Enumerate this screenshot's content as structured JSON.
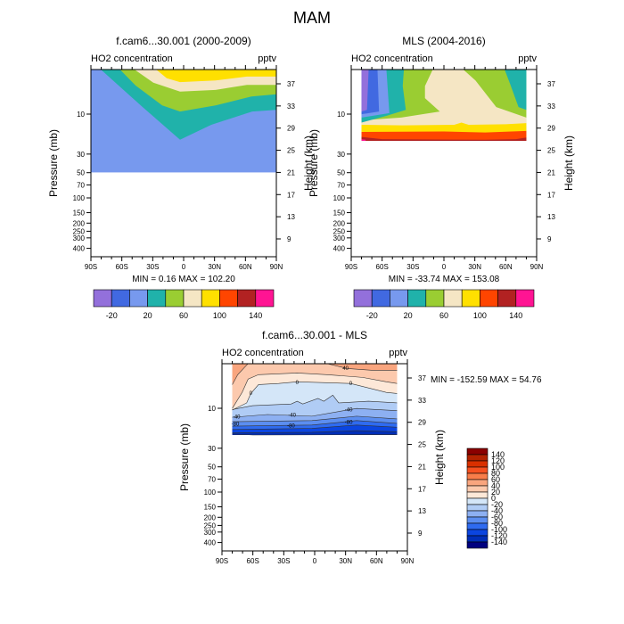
{
  "figure": {
    "title": "MAM"
  },
  "chart_data": [
    {
      "type": "contour",
      "title": "f.cam6...30.001 (2000-2009)",
      "left_label": "HO2 concentration",
      "right_label": "pptv",
      "stats": "MIN =   0.16  MAX = 102.20",
      "ylabel": "Pressure (mb)",
      "ylabel_right": "Height (km)",
      "x_ticks": [
        -90,
        -60,
        -30,
        0,
        30,
        60,
        90
      ],
      "x_tick_labels": [
        "90S",
        "60S",
        "30S",
        "0",
        "30N",
        "60N",
        "90N"
      ],
      "pressure_ticks": [
        10,
        30,
        50,
        70,
        100,
        150,
        200,
        250,
        300,
        400
      ],
      "pressure_tick_labels": [
        "10",
        "30",
        "50",
        "70",
        "100",
        "150",
        "200",
        "250",
        "300",
        "400"
      ],
      "height_ticks": [
        9,
        13,
        17,
        21,
        25,
        29,
        33,
        37
      ],
      "height_tick_labels": [
        "9",
        "13",
        "17",
        "21",
        "25",
        "29",
        "33",
        "37"
      ],
      "data_extent": {
        "lat": [
          -90,
          90
        ],
        "km": [
          21,
          40
        ]
      },
      "base_color": "#7799EE",
      "regions": [
        {
          "level": "20-40",
          "color": "#20B2AA",
          "lower_boundary": [
            [
              -90,
              40
            ],
            [
              -80.5,
              39.6
            ],
            [
              -39.8,
              32.8
            ],
            [
              -3.5,
              26.9
            ],
            [
              26.8,
              29.6
            ],
            [
              66.6,
              32.0
            ],
            [
              90,
              32.3
            ]
          ]
        },
        {
          "level": "40-60",
          "color": "#9ACD32",
          "lower_boundary": [
            [
              -64,
              40
            ],
            [
              -46.7,
              36.7
            ],
            [
              -20.8,
              33.1
            ],
            [
              -3.5,
              32.0
            ],
            [
              31,
              33.1
            ],
            [
              65.8,
              34.7
            ],
            [
              90,
              35.1
            ]
          ]
        },
        {
          "level": "60-80",
          "color": "#F5E6C4",
          "lower_boundary": [
            [
              -51,
              40
            ],
            [
              -29.4,
              37.2
            ],
            [
              -3.5,
              35.6
            ],
            [
              31,
              35.9
            ],
            [
              61.4,
              36.8
            ],
            [
              90,
              36.8
            ]
          ]
        },
        {
          "level": "80-100",
          "color": "#FFE000",
          "lower_boundary": [
            [
              -29.4,
              40
            ],
            [
              -16.4,
              38.0
            ],
            [
              -3.5,
              37.3
            ],
            [
              31,
              37.6
            ],
            [
              61.4,
              38.3
            ],
            [
              90,
              38.3
            ]
          ]
        }
      ],
      "colorbar": {
        "colors": [
          "#9370DB",
          "#4169E1",
          "#7799EE",
          "#20B2AA",
          "#9ACD32",
          "#F5E6C4",
          "#FFE000",
          "#FF4500",
          "#B22222",
          "#FF1493"
        ],
        "labels": [
          "-20",
          "20",
          "60",
          "100",
          "140"
        ]
      }
    },
    {
      "type": "contour",
      "title": "MLS (2004-2016)",
      "left_label": "HO2 concentration",
      "right_label": "pptv",
      "stats": "MIN = -33.74  MAX = 153.08",
      "ylabel": "Pressure (mb)",
      "ylabel_right": "Height (km)",
      "x_ticks": [
        -90,
        -60,
        -30,
        0,
        30,
        60,
        90
      ],
      "x_tick_labels": [
        "90S",
        "60S",
        "30S",
        "0",
        "30N",
        "60N",
        "90N"
      ],
      "pressure_ticks": [
        10,
        30,
        50,
        70,
        100,
        150,
        200,
        250,
        300,
        400
      ],
      "pressure_tick_labels": [
        "10",
        "30",
        "50",
        "70",
        "100",
        "150",
        "200",
        "250",
        "300",
        "400"
      ],
      "height_ticks": [
        9,
        13,
        17,
        21,
        25,
        29,
        33,
        37
      ],
      "height_tick_labels": [
        "9",
        "13",
        "17",
        "21",
        "25",
        "29",
        "33",
        "37"
      ],
      "data_extent": {
        "lat": [
          -80,
          80
        ],
        "km": [
          26.7,
          40
        ]
      },
      "base_color": "#9ACD32",
      "polygons": [
        {
          "level": "60-80",
          "color": "#F5E6C4",
          "points": [
            [
              -9.8,
              40
            ],
            [
              16.2,
              40
            ],
            [
              30.6,
              37.6
            ],
            [
              50.8,
              32.8
            ],
            [
              80,
              30.9
            ],
            [
              80,
              29.4
            ],
            [
              -80,
              29.4
            ],
            [
              -80,
              30.4
            ],
            [
              -41.5,
              30.9
            ],
            [
              -4,
              32.0
            ],
            [
              -18.4,
              34.4
            ],
            [
              -18.4,
              36.6
            ]
          ]
        },
        {
          "level": "20-40",
          "color": "#20B2AA",
          "points": [
            [
              -80,
              40
            ],
            [
              -38.7,
              40
            ],
            [
              -40,
              36.6
            ],
            [
              -37,
              32.3
            ],
            [
              -56,
              31.2
            ],
            [
              -80,
              30.0
            ]
          ]
        },
        {
          "level": "20-40",
          "color": "#20B2AA",
          "points": [
            [
              58,
              40
            ],
            [
              80,
              40
            ],
            [
              80,
              32.3
            ],
            [
              72.4,
              32.8
            ],
            [
              63.8,
              37.2
            ]
          ]
        },
        {
          "level": "0-20",
          "color": "#7799EE",
          "points": [
            [
              -80,
              40
            ],
            [
              -56,
              40
            ],
            [
              -53,
              31.7
            ],
            [
              -80,
              30.9
            ]
          ]
        },
        {
          "level": "-20-0",
          "color": "#4169E1",
          "points": [
            [
              -80,
              40
            ],
            [
              -64.6,
              40
            ],
            [
              -63,
              32.0
            ],
            [
              -80,
              31.5
            ]
          ]
        },
        {
          "level": "-40--20",
          "color": "#9370DB",
          "points": [
            [
              -80,
              40
            ],
            [
              -73,
              40
            ],
            [
              -74.7,
              32.3
            ],
            [
              -80,
              32.0
            ]
          ]
        },
        {
          "level": "80-100",
          "color": "#FFE000",
          "points": [
            [
              -80,
              29.6
            ],
            [
              -40,
              29.5
            ],
            [
              10,
              29.6
            ],
            [
              17,
              30.0
            ],
            [
              24,
              29.6
            ],
            [
              60,
              29.7
            ],
            [
              80,
              29.9
            ],
            [
              80,
              26.7
            ],
            [
              -80,
              26.7
            ]
          ]
        },
        {
          "level": "100-120",
          "color": "#FF4500",
          "points": [
            [
              -80,
              28.3
            ],
            [
              0,
              28.4
            ],
            [
              40,
              28.2
            ],
            [
              80,
              28.5
            ],
            [
              80,
              26.7
            ],
            [
              -80,
              26.7
            ]
          ]
        },
        {
          "level": "120-140",
          "color": "#B22222",
          "points": [
            [
              -80,
              27.4
            ],
            [
              -60,
              27.0
            ],
            [
              40,
              26.9
            ],
            [
              70,
              27.0
            ],
            [
              80,
              27.3
            ],
            [
              80,
              26.7
            ],
            [
              -80,
              26.7
            ]
          ]
        },
        {
          "level": ">140",
          "color": "#FF1493",
          "points": [
            [
              -80,
              27.0
            ],
            [
              -76,
              26.9
            ],
            [
              -76,
              26.7
            ],
            [
              -80,
              26.7
            ]
          ]
        }
      ],
      "colorbar": {
        "colors": [
          "#9370DB",
          "#4169E1",
          "#7799EE",
          "#20B2AA",
          "#9ACD32",
          "#F5E6C4",
          "#FFE000",
          "#FF4500",
          "#B22222",
          "#FF1493"
        ],
        "labels": [
          "-20",
          "20",
          "60",
          "100",
          "140"
        ]
      }
    },
    {
      "type": "contour",
      "title": "f.cam6...30.001 - MLS",
      "left_label": "HO2 concentration",
      "right_label": "pptv",
      "stats": "MIN = -152.59  MAX =  54.76",
      "ylabel": "Pressure (mb)",
      "ylabel_right": "Height (km)",
      "x_ticks": [
        -90,
        -60,
        -30,
        0,
        30,
        60,
        90
      ],
      "x_tick_labels": [
        "90S",
        "60S",
        "30S",
        "0",
        "30N",
        "60N",
        "90N"
      ],
      "pressure_ticks": [
        10,
        30,
        50,
        70,
        100,
        150,
        200,
        250,
        300,
        400
      ],
      "pressure_tick_labels": [
        "10",
        "30",
        "50",
        "70",
        "100",
        "150",
        "200",
        "250",
        "300",
        "400"
      ],
      "height_ticks": [
        9,
        13,
        17,
        21,
        25,
        29,
        33,
        37
      ],
      "height_tick_labels": [
        "9",
        "13",
        "17",
        "21",
        "25",
        "29",
        "33",
        "37"
      ],
      "data_extent": {
        "lat": [
          -80,
          80
        ],
        "km": [
          26.7,
          40
        ]
      },
      "base_color": "#0B2A9E",
      "regions": [
        {
          "level": "-140--120",
          "color": "#002EB8",
          "lower_boundary": [
            [
              -80,
              26.9
            ],
            [
              -60,
              26.7
            ],
            [
              40,
              26.75
            ],
            [
              80,
              26.75
            ]
          ]
        },
        {
          "level": "-120--100",
          "color": "#0B45E0",
          "lower_boundary": [
            [
              -80,
              27.1
            ],
            [
              -2.6,
              27.2
            ],
            [
              40.7,
              27.5
            ],
            [
              80,
              27.3
            ]
          ]
        },
        {
          "level": "-100--80",
          "color": "#2F6BF0",
          "lower_boundary": [
            [
              -80,
              27.7
            ],
            [
              -2.6,
              27.9
            ],
            [
              40.7,
              28.5
            ],
            [
              80,
              28.1
            ]
          ]
        },
        {
          "level": "-80--60",
          "color": "#5C8EF0",
          "lower_boundary": [
            [
              -80,
              28.3
            ],
            [
              -2.6,
              28.5
            ],
            [
              40.7,
              29.3
            ],
            [
              80,
              28.8
            ]
          ]
        },
        {
          "level": "-60--40",
          "color": "#8DB0F2",
          "lower_boundary": [
            [
              -80,
              29.1
            ],
            [
              -2.6,
              29.3
            ],
            [
              40.7,
              30.1
            ],
            [
              80,
              29.6
            ]
          ]
        },
        {
          "level": "-40--20",
          "color": "#B0CCF5",
          "lower_boundary": [
            [
              -80,
              29.9
            ],
            [
              -45.9,
              30.4
            ],
            [
              -2.6,
              30.1
            ],
            [
              40.7,
              31.5
            ],
            [
              80,
              31.1
            ]
          ]
        },
        {
          "level": "-20-0",
          "color": "#D4E6F8",
          "lower_boundary": [
            [
              -80,
              31.3
            ],
            [
              -60.3,
              32.0
            ],
            [
              -22.8,
              32.3
            ],
            [
              -17,
              32.8
            ],
            [
              -11.6,
              32.3
            ],
            [
              3.2,
              33.3
            ],
            [
              8.9,
              32.8
            ],
            [
              17.6,
              33.9
            ],
            [
              23.3,
              32.5
            ],
            [
              52.2,
              32.8
            ],
            [
              80,
              32.5
            ]
          ]
        },
        {
          "level": "0-20",
          "color": "#FDE8D8",
          "lower_boundary": [
            [
              -80,
              31.2
            ],
            [
              -66,
              32.5
            ],
            [
              -62,
              34.2
            ],
            [
              -54.5,
              35.8
            ],
            [
              -35,
              36.0
            ],
            [
              -17,
              36.3
            ],
            [
              34.9,
              36.0
            ],
            [
              69.5,
              34.4
            ],
            [
              80,
              34.2
            ]
          ]
        },
        {
          "level": "20-40",
          "color": "#FCC9AD",
          "lower_boundary": [
            [
              -80,
              31.5
            ],
            [
              -70.4,
              34.4
            ],
            [
              -64.6,
              36.8
            ],
            [
              -54.5,
              37.6
            ],
            [
              -17,
              37.9
            ],
            [
              11.8,
              37.6
            ],
            [
              46.5,
              37.1
            ],
            [
              69.5,
              36.3
            ],
            [
              80,
              36.0
            ]
          ]
        },
        {
          "level": "40-60",
          "color": "#F9A57E",
          "lower_boundary": [
            [
              -80,
              35.8
            ],
            [
              -74.7,
              37.6
            ],
            [
              -64.6,
              39.6
            ],
            [
              11.8,
              39.6
            ],
            [
              32,
              38.7
            ],
            [
              55,
              38.4
            ],
            [
              80,
              38.4
            ]
          ]
        }
      ],
      "contour_labels": [
        {
          "text": "40",
          "lat": 30,
          "km": 38.8
        },
        {
          "text": "0",
          "lat": -17,
          "km": 36.2
        },
        {
          "text": "0",
          "lat": 35,
          "km": 36.0
        },
        {
          "text": "0",
          "lat": -62,
          "km": 34.3
        },
        {
          "text": "-40",
          "lat": -22,
          "km": 30.3
        },
        {
          "text": "-40",
          "lat": 33,
          "km": 31.3
        },
        {
          "text": "-40",
          "lat": -76,
          "km": 30.0
        },
        {
          "text": "-80",
          "lat": -23,
          "km": 28.4
        },
        {
          "text": "-80",
          "lat": 33,
          "km": 29.0
        },
        {
          "text": "-80",
          "lat": -77,
          "km": 28.7
        }
      ],
      "colorbar": {
        "orientation": "vertical",
        "colors": [
          "#8B0000",
          "#B22200",
          "#D93000",
          "#F55020",
          "#F87D4A",
          "#F9A57E",
          "#FCC9AD",
          "#FDE8D8",
          "#D4E6F8",
          "#B0CCF5",
          "#8DB0F2",
          "#5C8EF0",
          "#2F6BF0",
          "#0B45E0",
          "#002EB8",
          "#00007F"
        ],
        "labels": [
          "140",
          "120",
          "100",
          "80",
          "60",
          "40",
          "20",
          "0",
          "-20",
          "-40",
          "-60",
          "-80",
          "-100",
          "-120",
          "-140"
        ]
      }
    }
  ]
}
